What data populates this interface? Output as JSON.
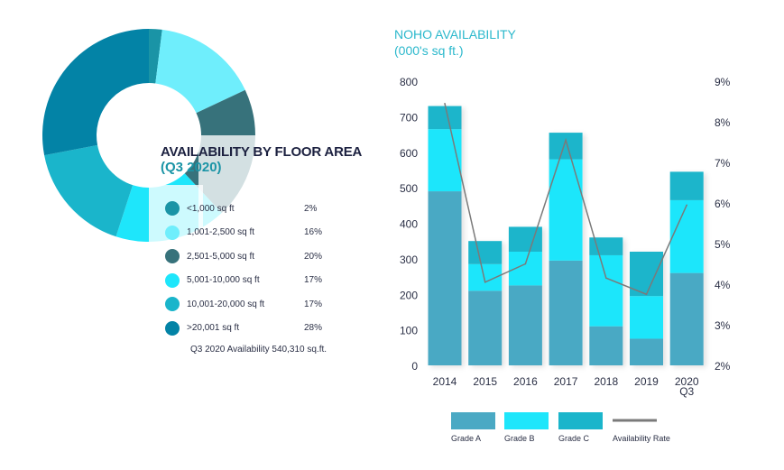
{
  "donut": {
    "title": "AVAILABILITY BY FLOOR AREA",
    "subtitle": "(Q3 2020)",
    "note": "Q3 2020 Availability 540,310 sq.ft.",
    "slices": [
      {
        "label": "<1,000 sq ft",
        "pct_label": "2%",
        "value": 2,
        "color": "#1a94a6"
      },
      {
        "label": "1,001-2,500 sq ft",
        "pct_label": "16%",
        "value": 16,
        "color": "#6feefc"
      },
      {
        "label": "2,501-5,000 sq ft",
        "pct_label": "20%",
        "value": 20,
        "color": "#37727b"
      },
      {
        "label": "5,001-10,000 sq ft",
        "pct_label": "17%",
        "value": 17,
        "color": "#1ee6fb"
      },
      {
        "label": "10,001-20,000 sq ft",
        "pct_label": "17%",
        "value": 17,
        "color": "#1ab5cb"
      },
      {
        "label": ">20,001 sq ft",
        "pct_label": "28%",
        "value": 28,
        "color": "#0383a6"
      }
    ]
  },
  "chart_data": [
    {
      "type": "pie",
      "title": "AVAILABILITY BY FLOOR AREA (Q3 2020)",
      "categories": [
        "<1,000 sq ft",
        "1,001-2,500 sq ft",
        "2,501-5,000 sq ft",
        "5,001-10,000 sq ft",
        "10,001-20,000 sq ft",
        ">20,001 sq ft"
      ],
      "values": [
        2,
        16,
        20,
        17,
        17,
        28
      ]
    },
    {
      "type": "bar",
      "stacked": true,
      "title": "NOHO AVAILABILITY",
      "subtitle": "(000's sq ft.)",
      "categories": [
        "2014",
        "2015",
        "2016",
        "2017",
        "2018",
        "2019",
        "2020|Q3"
      ],
      "ylim": [
        0,
        800
      ],
      "yticks": [
        "0",
        "100",
        "200",
        "300",
        "400",
        "500",
        "600",
        "700",
        "800"
      ],
      "y2lim": [
        2,
        9
      ],
      "y2ticks": [
        "2%",
        "3%",
        "4%",
        "5%",
        "6%",
        "7%",
        "8%",
        "9%"
      ],
      "grid": false,
      "legend": "bottom",
      "series": [
        {
          "name": "Grade A",
          "color": "#4aa9c4",
          "values": [
            490,
            210,
            225,
            295,
            110,
            75,
            260
          ]
        },
        {
          "name": "Grade B",
          "color": "#1ee6fb",
          "values": [
            175,
            75,
            95,
            285,
            200,
            120,
            205
          ]
        },
        {
          "name": "Grade C",
          "color": "#1ab5cb",
          "values": [
            65,
            65,
            70,
            75,
            50,
            125,
            80
          ]
        },
        {
          "name": "Availability Rate",
          "type": "line",
          "axis": "right",
          "color": "#7a7a7a",
          "values": [
            8.45,
            4.05,
            4.5,
            7.55,
            4.15,
            3.75,
            5.95
          ]
        }
      ]
    }
  ]
}
